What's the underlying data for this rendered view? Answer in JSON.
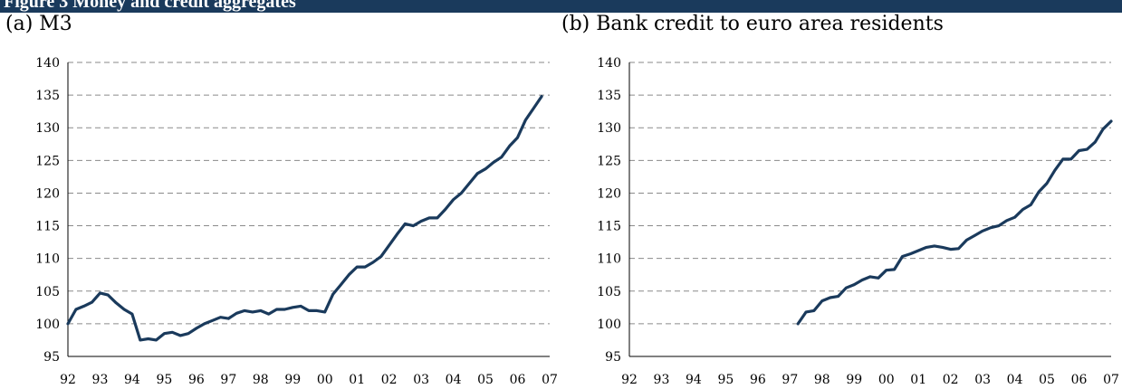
{
  "header": {
    "label": "Figure 3  Money and credit aggregates"
  },
  "chart_data": [
    {
      "type": "line",
      "title": "(a) M3",
      "xlabel": "",
      "ylabel": "",
      "ylim": [
        95,
        140
      ],
      "xlim": [
        1992,
        2007
      ],
      "yticks": [
        "95",
        "100",
        "105",
        "110",
        "115",
        "120",
        "125",
        "130",
        "135",
        "140"
      ],
      "xticks": [
        "92",
        "93",
        "94",
        "95",
        "96",
        "97",
        "98",
        "99",
        "00",
        "01",
        "02",
        "03",
        "04",
        "05",
        "06",
        "07"
      ],
      "grid": "horizontal-dashed",
      "line_color": "#1a3a5c",
      "series": [
        {
          "x": [
            1992.0,
            1992.25,
            1992.5,
            1992.75,
            1993.0,
            1993.25,
            1993.5,
            1993.75,
            1994.0,
            1994.25,
            1994.5,
            1994.75,
            1995.0,
            1995.25,
            1995.5,
            1995.75,
            1996.0,
            1996.25,
            1996.5,
            1996.75,
            1997.0,
            1997.25,
            1997.5,
            1997.75,
            1998.0,
            1998.25,
            1998.5,
            1998.75,
            1999.0,
            1999.25,
            1999.5,
            1999.75,
            2000.0,
            2000.25,
            2000.5,
            2000.75,
            2001.0,
            2001.25,
            2001.5,
            2001.75,
            2002.0,
            2002.25,
            2002.5,
            2002.75,
            2003.0,
            2003.25,
            2003.5,
            2003.75,
            2004.0,
            2004.25,
            2004.5,
            2004.75,
            2005.0,
            2005.25,
            2005.5,
            2005.75,
            2006.0,
            2006.25,
            2006.5,
            2006.75
          ],
          "values": [
            100.0,
            102.2,
            102.7,
            103.3,
            104.7,
            104.4,
            103.2,
            102.2,
            101.5,
            97.5,
            97.7,
            97.5,
            98.5,
            98.7,
            98.2,
            98.5,
            99.3,
            100.0,
            100.5,
            101.0,
            100.8,
            101.6,
            102.0,
            101.8,
            102.0,
            101.5,
            102.2,
            102.2,
            102.5,
            102.7,
            102.0,
            102.0,
            101.8,
            104.5,
            106.0,
            107.5,
            108.7,
            108.7,
            109.4,
            110.3,
            112.0,
            113.7,
            115.3,
            115.0,
            115.7,
            116.2,
            116.2,
            117.5,
            119.0,
            120.0,
            121.5,
            123.0,
            123.7,
            124.7,
            125.5,
            127.2,
            128.5,
            131.2,
            133.0,
            134.8
          ]
        }
      ]
    },
    {
      "type": "line",
      "title": "(b) Bank credit to euro area residents",
      "xlabel": "",
      "ylabel": "",
      "ylim": [
        95,
        140
      ],
      "xlim": [
        1992,
        2007
      ],
      "yticks": [
        "95",
        "100",
        "105",
        "110",
        "115",
        "120",
        "125",
        "130",
        "135",
        "140"
      ],
      "xticks": [
        "92",
        "93",
        "94",
        "95",
        "96",
        "97",
        "98",
        "99",
        "00",
        "01",
        "02",
        "03",
        "04",
        "05",
        "06",
        "07"
      ],
      "grid": "horizontal-dashed",
      "line_color": "#1a3a5c",
      "series": [
        {
          "x": [
            1997.25,
            1997.5,
            1997.75,
            1998.0,
            1998.25,
            1998.5,
            1998.75,
            1999.0,
            1999.25,
            1999.5,
            1999.75,
            2000.0,
            2000.25,
            2000.5,
            2000.75,
            2001.0,
            2001.25,
            2001.5,
            2001.75,
            2002.0,
            2002.25,
            2002.5,
            2002.75,
            2003.0,
            2003.25,
            2003.5,
            2003.75,
            2004.0,
            2004.25,
            2004.5,
            2004.75,
            2005.0,
            2005.25,
            2005.5,
            2005.75,
            2006.0,
            2006.25,
            2006.5,
            2006.75,
            2007.0
          ],
          "values": [
            100.0,
            101.8,
            102.0,
            103.5,
            104.0,
            104.2,
            105.5,
            106.0,
            106.7,
            107.2,
            107.0,
            108.2,
            108.3,
            110.3,
            110.7,
            111.2,
            111.7,
            111.9,
            111.7,
            111.4,
            111.5,
            112.8,
            113.5,
            114.2,
            114.7,
            115.0,
            115.8,
            116.3,
            117.5,
            118.2,
            120.2,
            121.5,
            123.5,
            125.2,
            125.2,
            126.5,
            126.7,
            127.8,
            129.8,
            131.0
          ]
        }
      ]
    }
  ]
}
